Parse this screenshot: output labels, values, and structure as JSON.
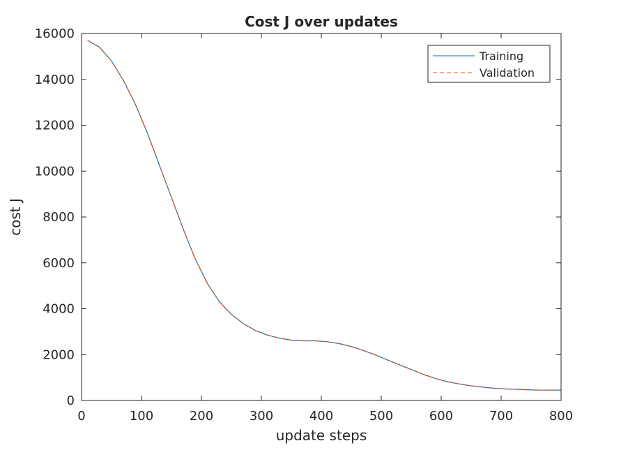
{
  "chart_data": {
    "type": "line",
    "title": "Cost J over updates",
    "xlabel": "update steps",
    "ylabel": "cost J",
    "xlim": [
      0,
      800
    ],
    "ylim": [
      0,
      16000
    ],
    "xticks": [
      0,
      100,
      200,
      300,
      400,
      500,
      600,
      700,
      800
    ],
    "yticks": [
      0,
      2000,
      4000,
      6000,
      8000,
      10000,
      12000,
      14000,
      16000
    ],
    "grid": false,
    "legend": {
      "location": "top-right",
      "entries": [
        "Training",
        "Validation"
      ]
    },
    "series": [
      {
        "name": "Training",
        "color": "#0072BD",
        "style": "solid",
        "x": [
          10,
          30,
          50,
          70,
          90,
          110,
          130,
          150,
          170,
          190,
          210,
          230,
          250,
          270,
          290,
          310,
          330,
          350,
          370,
          390,
          410,
          430,
          450,
          470,
          490,
          510,
          530,
          550,
          570,
          590,
          610,
          630,
          650,
          670,
          690,
          710,
          730,
          750,
          770,
          790,
          800
        ],
        "y": [
          15700,
          15400,
          14800,
          13950,
          12900,
          11650,
          10250,
          8850,
          7450,
          6150,
          5100,
          4300,
          3750,
          3350,
          3050,
          2850,
          2720,
          2630,
          2600,
          2600,
          2560,
          2480,
          2350,
          2180,
          1990,
          1770,
          1560,
          1350,
          1140,
          960,
          820,
          720,
          640,
          580,
          530,
          500,
          480,
          460,
          450,
          450,
          450
        ]
      },
      {
        "name": "Validation",
        "color": "#D95319",
        "style": "dashed",
        "x": [
          10,
          30,
          50,
          70,
          90,
          110,
          130,
          150,
          170,
          190,
          210,
          230,
          250,
          270,
          290,
          310,
          330,
          350,
          370,
          390,
          410,
          430,
          450,
          470,
          490,
          510,
          530,
          550,
          570,
          590,
          610,
          630,
          650,
          670,
          690,
          710,
          730,
          750,
          770,
          790,
          800
        ],
        "y": [
          15700,
          15400,
          14800,
          13950,
          12900,
          11650,
          10250,
          8850,
          7450,
          6150,
          5100,
          4300,
          3750,
          3350,
          3050,
          2850,
          2720,
          2630,
          2600,
          2600,
          2560,
          2480,
          2350,
          2180,
          1990,
          1770,
          1560,
          1350,
          1140,
          960,
          820,
          720,
          640,
          580,
          530,
          500,
          480,
          460,
          450,
          450,
          450
        ]
      }
    ]
  }
}
